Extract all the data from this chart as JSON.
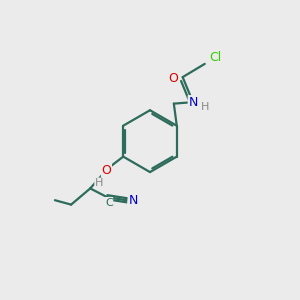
{
  "background_color": "#ebebeb",
  "bond_color": "#2d6b5a",
  "atom_colors": {
    "O": "#dd0000",
    "N": "#0000cc",
    "Cl": "#33cc00",
    "H": "#888888"
  },
  "figsize": [
    3.0,
    3.0
  ],
  "dpi": 100
}
